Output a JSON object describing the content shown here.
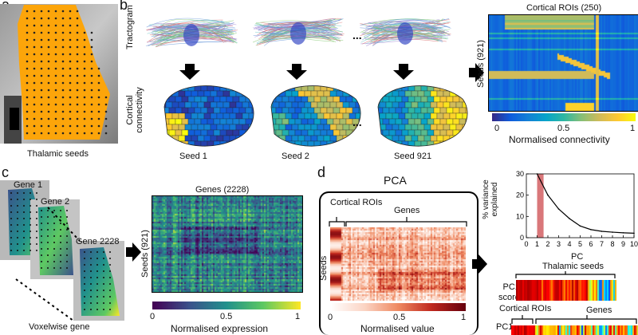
{
  "panels": {
    "a": {
      "letter": "a",
      "caption": "Thalamic seeds"
    },
    "b": {
      "letter": "b",
      "row_tractogram": "Tractogram",
      "row_connectivity": "Cortical connectivity",
      "seeds": [
        "Seed 1",
        "Seed 2",
        "Seed 921"
      ],
      "ellipsis": "...",
      "matrix_title": "Cortical ROIs (250)",
      "matrix_ylabel": "Seeds (921)",
      "colorbar_ticks": [
        "0",
        "0.5",
        "1"
      ],
      "colorbar_label": "Normalised connectivity"
    },
    "c": {
      "letter": "c",
      "genes": [
        "Gene 1",
        "Gene 2",
        "Gene 2228"
      ],
      "caption": "Voxelwise gene",
      "matrix_title": "Genes (2228)",
      "matrix_ylabel": "Seeds (921)",
      "colorbar_ticks": [
        "0",
        "0.5",
        "1"
      ],
      "colorbar_label": "Normalised expression"
    },
    "d": {
      "letter": "d",
      "box_title": "PCA",
      "cortical_label": "Cortical ROIs",
      "genes_label": "Genes",
      "seeds_label": "Seeds",
      "colorbar_ticks": [
        "0",
        "0.5",
        "1"
      ],
      "colorbar_label": "Normalised value",
      "scores_header": "Thalamic seeds",
      "scores_label_1": "PC1",
      "scores_label_2": "scores",
      "loadings_cortical": "Cortical ROIs",
      "loadings_genes": "Genes",
      "loadings_label": "PC1"
    }
  },
  "chart_data": {
    "type": "line",
    "title": "",
    "xlabel": "PC",
    "ylabel": "% variance explained",
    "x": [
      1,
      2,
      3,
      4,
      5,
      6,
      7,
      8,
      9,
      10
    ],
    "values": [
      30,
      20,
      13.5,
      9,
      5.5,
      3.8,
      3,
      2.6,
      2.3,
      2.1
    ],
    "xlim": [
      0,
      10
    ],
    "ylim": [
      0,
      30
    ],
    "xticks": [
      "0",
      "1",
      "2",
      "3",
      "4",
      "5",
      "6",
      "7",
      "8",
      "9",
      "10"
    ],
    "yticks": [
      "0",
      "10",
      "20",
      "30"
    ],
    "highlight_x": [
      1,
      1.6
    ],
    "highlight_color": "#d9777a"
  },
  "colors": {
    "orange": "#fca50a",
    "viridis": [
      "#440154",
      "#3b528b",
      "#21918c",
      "#5ec962",
      "#fde725"
    ],
    "parula": [
      "#352a87",
      "#0f5cdd",
      "#1481d6",
      "#06a4ca",
      "#2eb7a4",
      "#87bf77",
      "#d1bb59",
      "#fec832",
      "#f9fb0e"
    ],
    "reds": [
      "#ffffff",
      "#fbd5c5",
      "#ef8a62",
      "#c0281e",
      "#67000d"
    ]
  }
}
